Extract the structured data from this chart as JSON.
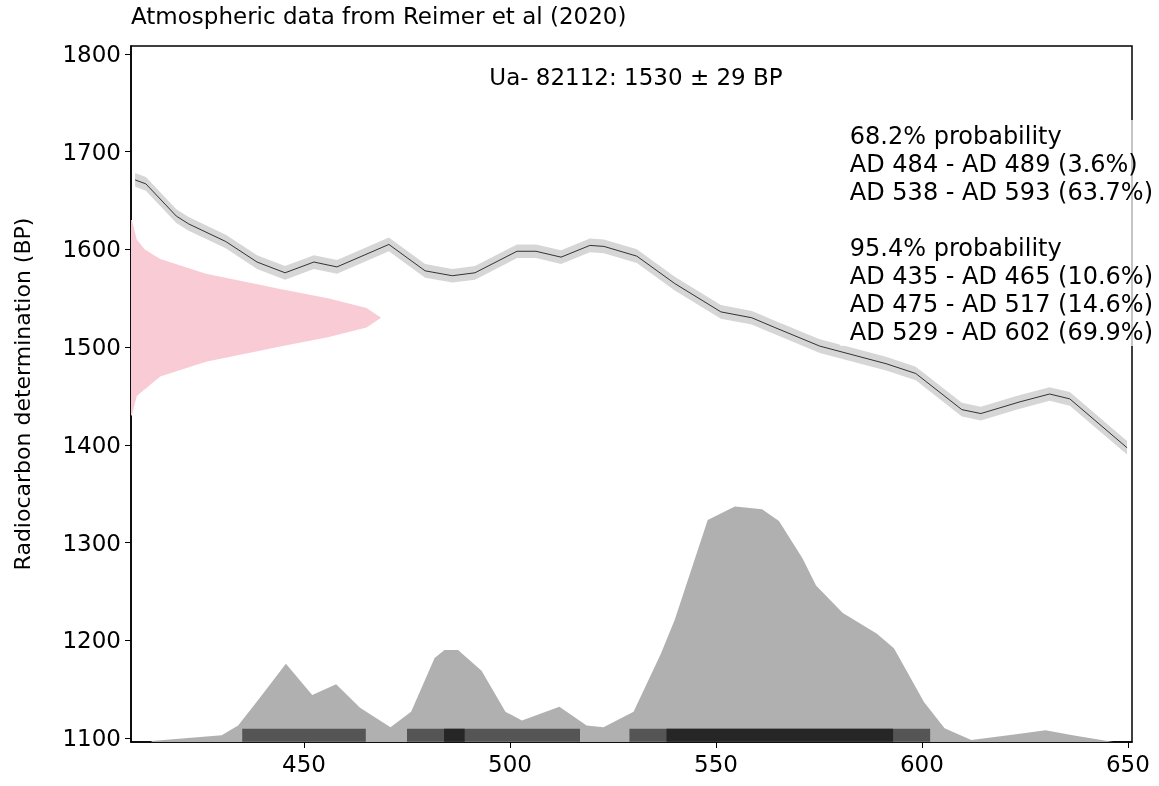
{
  "chart_data": {
    "type": "line",
    "title": "Atmospheric data from Reimer et al (2020)",
    "subtitle": "Ua- 82112: 1530 ± 29 BP",
    "ylabel": "Radiocarbon determination (BP)",
    "xlim": [
      408,
      651
    ],
    "xticks": [
      450,
      500,
      550,
      600,
      650
    ],
    "ylim": [
      1096,
      1808
    ],
    "yticks": [
      1100,
      1200,
      1300,
      1400,
      1500,
      1600,
      1700,
      1800
    ],
    "grid": false,
    "marker": "none",
    "annotations": [
      "68.2% probability\nAD 484 - AD 489 (3.6%)\nAD 538 - AD 593 (63.7%)",
      "95.4% probability\nAD 435 - AD 465 (10.6%)\nAD 475 - AD 517 (14.6%)\nAD 529 - AD 602 (69.9%)"
    ],
    "series": [
      {
        "color": "#333333",
        "x": [
          409,
          411.6,
          419,
          422,
          431,
          438.6,
          445.4,
          452.4,
          458,
          470.6,
          479.4,
          486,
          491.5,
          501.7,
          506.3,
          512.4,
          519.4,
          522.8,
          530.8,
          540,
          551.2,
          558.7,
          564.3,
          575.2,
          591.3,
          598.5,
          609.7,
          614.3,
          623.8,
          631,
          635.9,
          649.8
        ],
        "values": [
          1671,
          1667,
          1634,
          1626,
          1608,
          1587,
          1576,
          1587,
          1582,
          1605,
          1578,
          1573,
          1576,
          1598,
          1598,
          1592,
          1604,
          1603,
          1593,
          1565,
          1536,
          1530,
          1520,
          1501,
          1483,
          1473,
          1436,
          1432,
          1444,
          1452,
          1447,
          1397
        ],
        "lower": [
          1664,
          1660,
          1627,
          1619,
          1601,
          1580,
          1569,
          1580,
          1575,
          1598,
          1571,
          1566,
          1569,
          1591,
          1591,
          1585,
          1597,
          1596,
          1586,
          1558,
          1529,
          1523,
          1513,
          1494,
          1476,
          1466,
          1429,
          1425,
          1437,
          1445,
          1440,
          1390
        ],
        "upper": [
          1678,
          1674,
          1641,
          1633,
          1615,
          1594,
          1583,
          1594,
          1589,
          1612,
          1585,
          1580,
          1583,
          1605,
          1605,
          1599,
          1611,
          1610,
          1600,
          1572,
          1543,
          1537,
          1527,
          1508,
          1490,
          1480,
          1443,
          1439,
          1451,
          1459,
          1454,
          1404
        ]
      },
      {
        "type": "area",
        "color": "#f9ccd5",
        "x": [
          408.2,
          409.4,
          411.3,
          415.1,
          426.2,
          443.6,
          455.8,
          465.2,
          468.7,
          465.2,
          455.8,
          443.6,
          426.2,
          415.1,
          409.4,
          408.2
        ],
        "values": [
          1630,
          1610,
          1600,
          1590,
          1575,
          1560,
          1550,
          1540,
          1530,
          1520,
          1510,
          1500,
          1485,
          1470,
          1450,
          1430
        ]
      },
      {
        "type": "area",
        "color": "#b0b0b0",
        "x": [
          413,
          430,
          434,
          439.8,
          445.6,
          452,
          457.8,
          463.6,
          471,
          476,
          481.7,
          484.1,
          487.4,
          493.1,
          498.9,
          502.9,
          512,
          518.6,
          522.7,
          530,
          536.6,
          540,
          548,
          554.6,
          561.2,
          565.3,
          571,
          574.3,
          580.8,
          589,
          593.2,
          594,
          600.5,
          605.5,
          612,
          630,
          636.6,
          646.5
        ],
        "values": [
          1097,
          1103,
          1113,
          1144,
          1176,
          1144,
          1155,
          1131,
          1111,
          1127,
          1182,
          1190,
          1190,
          1169,
          1127,
          1118,
          1132,
          1113,
          1111,
          1127,
          1186,
          1221,
          1323,
          1337,
          1334,
          1322,
          1284,
          1256,
          1228,
          1207,
          1192,
          1186,
          1137,
          1110,
          1098,
          1108,
          1103,
          1096
        ]
      },
      {
        "type": "line",
        "color": "#555555",
        "x": [
          435,
          465,
          470,
          475,
          517,
          520,
          529,
          602
        ],
        "values": [
          1103,
          1103,
          null,
          1103,
          1103,
          null,
          1103,
          1103
        ]
      },
      {
        "type": "line",
        "color": "#262626",
        "x": [
          484,
          489,
          500,
          538,
          593
        ],
        "values": [
          1103,
          1103,
          null,
          1103,
          1103
        ]
      }
    ]
  }
}
